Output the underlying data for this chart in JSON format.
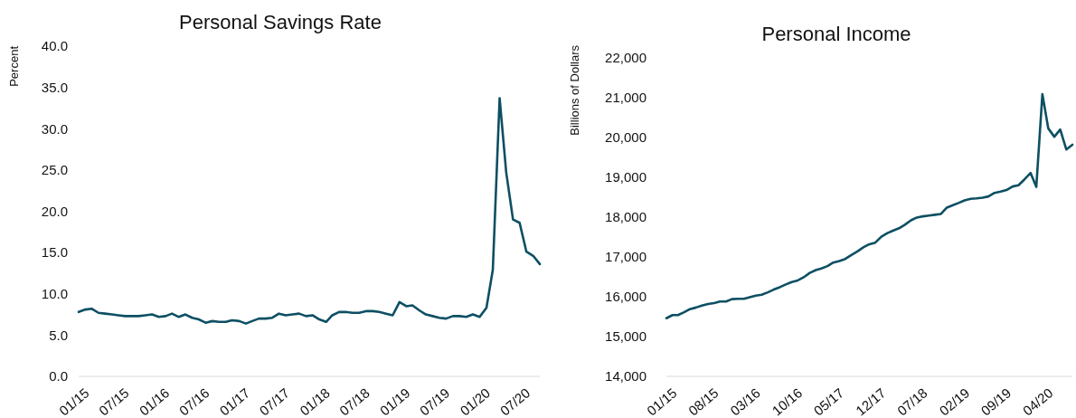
{
  "chart_data": [
    {
      "type": "line",
      "title": "Personal Savings Rate",
      "ylabel": "Percent",
      "ylim": [
        0,
        40
      ],
      "yticks": [
        {
          "value": 0,
          "label": "0.0"
        },
        {
          "value": 5,
          "label": "5.0"
        },
        {
          "value": 10,
          "label": "10.0"
        },
        {
          "value": 15,
          "label": "15.0"
        },
        {
          "value": 20,
          "label": "20.0"
        },
        {
          "value": 25,
          "label": "25.0"
        },
        {
          "value": 30,
          "label": "30.0"
        },
        {
          "value": 35,
          "label": "35.0"
        },
        {
          "value": 40,
          "label": "40.0"
        }
      ],
      "xlim": [
        "2015-01",
        "2020-10"
      ],
      "xticks": [
        {
          "value": "2015-01",
          "label": "01/15"
        },
        {
          "value": "2015-07",
          "label": "07/15"
        },
        {
          "value": "2016-01",
          "label": "01/16"
        },
        {
          "value": "2016-07",
          "label": "07/16"
        },
        {
          "value": "2017-01",
          "label": "01/17"
        },
        {
          "value": "2017-07",
          "label": "07/17"
        },
        {
          "value": "2018-01",
          "label": "01/18"
        },
        {
          "value": "2018-07",
          "label": "07/18"
        },
        {
          "value": "2019-01",
          "label": "01/19"
        },
        {
          "value": "2019-07",
          "label": "07/19"
        },
        {
          "value": "2020-01",
          "label": "01/20"
        },
        {
          "value": "2020-07",
          "label": "07/20"
        }
      ],
      "grid": false,
      "marker": "none",
      "line_style": "solid",
      "x": [
        "2015-01",
        "2015-02",
        "2015-03",
        "2015-04",
        "2015-05",
        "2015-06",
        "2015-07",
        "2015-08",
        "2015-09",
        "2015-10",
        "2015-11",
        "2015-12",
        "2016-01",
        "2016-02",
        "2016-03",
        "2016-04",
        "2016-05",
        "2016-06",
        "2016-07",
        "2016-08",
        "2016-09",
        "2016-10",
        "2016-11",
        "2016-12",
        "2017-01",
        "2017-02",
        "2017-03",
        "2017-04",
        "2017-05",
        "2017-06",
        "2017-07",
        "2017-08",
        "2017-09",
        "2017-10",
        "2017-11",
        "2017-12",
        "2018-01",
        "2018-02",
        "2018-03",
        "2018-04",
        "2018-05",
        "2018-06",
        "2018-07",
        "2018-08",
        "2018-09",
        "2018-10",
        "2018-11",
        "2018-12",
        "2019-01",
        "2019-02",
        "2019-03",
        "2019-04",
        "2019-05",
        "2019-06",
        "2019-07",
        "2019-08",
        "2019-09",
        "2019-10",
        "2019-11",
        "2019-12",
        "2020-01",
        "2020-02",
        "2020-03",
        "2020-04",
        "2020-05",
        "2020-06",
        "2020-07",
        "2020-08",
        "2020-09",
        "2020-10"
      ],
      "series": [
        {
          "color": "#0d4f63",
          "values": [
            7.8,
            8.1,
            8.2,
            7.7,
            7.6,
            7.5,
            7.4,
            7.3,
            7.3,
            7.3,
            7.4,
            7.5,
            7.2,
            7.3,
            7.6,
            7.2,
            7.5,
            7.1,
            6.9,
            6.5,
            6.7,
            6.6,
            6.6,
            6.8,
            6.7,
            6.4,
            6.7,
            7.0,
            7.0,
            7.1,
            7.6,
            7.4,
            7.5,
            7.6,
            7.3,
            7.4,
            6.9,
            6.6,
            7.4,
            7.8,
            7.8,
            7.7,
            7.7,
            7.9,
            7.9,
            7.8,
            7.6,
            7.4,
            9.0,
            8.5,
            8.6,
            8.0,
            7.5,
            7.3,
            7.1,
            7.0,
            7.3,
            7.3,
            7.2,
            7.5,
            7.2,
            8.3,
            12.9,
            33.7,
            24.7,
            19.0,
            18.6,
            15.1,
            14.6,
            13.6
          ]
        }
      ]
    },
    {
      "type": "line",
      "title": "Personal Income",
      "ylabel": "Billions of Dollars",
      "ylim": [
        14000,
        22000
      ],
      "yticks": [
        {
          "value": 14000,
          "label": "14,000"
        },
        {
          "value": 15000,
          "label": "15,000"
        },
        {
          "value": 16000,
          "label": "16,000"
        },
        {
          "value": 17000,
          "label": "17,000"
        },
        {
          "value": 18000,
          "label": "18,000"
        },
        {
          "value": 19000,
          "label": "19,000"
        },
        {
          "value": 20000,
          "label": "20,000"
        },
        {
          "value": 21000,
          "label": "21,000"
        },
        {
          "value": 22000,
          "label": "22,000"
        }
      ],
      "xlim": [
        "2015-01",
        "2020-09"
      ],
      "xticks": [
        {
          "value": "2015-01",
          "label": "01/15"
        },
        {
          "value": "2015-08",
          "label": "08/15"
        },
        {
          "value": "2016-03",
          "label": "03/16"
        },
        {
          "value": "2016-10",
          "label": "10/16"
        },
        {
          "value": "2017-05",
          "label": "05/17"
        },
        {
          "value": "2017-12",
          "label": "12/17"
        },
        {
          "value": "2018-07",
          "label": "07/18"
        },
        {
          "value": "2019-02",
          "label": "02/19"
        },
        {
          "value": "2019-09",
          "label": "09/19"
        },
        {
          "value": "2020-04",
          "label": "04/20"
        }
      ],
      "grid": false,
      "marker": "none",
      "line_style": "solid",
      "x": [
        "2015-01",
        "2015-02",
        "2015-03",
        "2015-04",
        "2015-05",
        "2015-06",
        "2015-07",
        "2015-08",
        "2015-09",
        "2015-10",
        "2015-11",
        "2015-12",
        "2016-01",
        "2016-02",
        "2016-03",
        "2016-04",
        "2016-05",
        "2016-06",
        "2016-07",
        "2016-08",
        "2016-09",
        "2016-10",
        "2016-11",
        "2016-12",
        "2017-01",
        "2017-02",
        "2017-03",
        "2017-04",
        "2017-05",
        "2017-06",
        "2017-07",
        "2017-08",
        "2017-09",
        "2017-10",
        "2017-11",
        "2017-12",
        "2018-01",
        "2018-02",
        "2018-03",
        "2018-04",
        "2018-05",
        "2018-06",
        "2018-07",
        "2018-08",
        "2018-09",
        "2018-10",
        "2018-11",
        "2018-12",
        "2019-01",
        "2019-02",
        "2019-03",
        "2019-04",
        "2019-05",
        "2019-06",
        "2019-07",
        "2019-08",
        "2019-09",
        "2019-10",
        "2019-11",
        "2019-12",
        "2020-01",
        "2020-02",
        "2020-03",
        "2020-04",
        "2020-05",
        "2020-06",
        "2020-07",
        "2020-08",
        "2020-09"
      ],
      "series": [
        {
          "color": "#0d4f63",
          "values": [
            15460,
            15540,
            15540,
            15610,
            15690,
            15730,
            15780,
            15820,
            15840,
            15880,
            15880,
            15940,
            15950,
            15950,
            15990,
            16030,
            16050,
            16110,
            16180,
            16240,
            16310,
            16370,
            16410,
            16490,
            16600,
            16670,
            16710,
            16770,
            16860,
            16900,
            16950,
            17050,
            17140,
            17240,
            17320,
            17360,
            17510,
            17600,
            17660,
            17720,
            17810,
            17920,
            17990,
            18020,
            18040,
            18060,
            18080,
            18240,
            18300,
            18360,
            18420,
            18460,
            18470,
            18490,
            18520,
            18610,
            18640,
            18680,
            18770,
            18800,
            18950,
            19110,
            18760,
            21090,
            20230,
            20020,
            20200,
            19700,
            19820
          ]
        }
      ]
    }
  ]
}
